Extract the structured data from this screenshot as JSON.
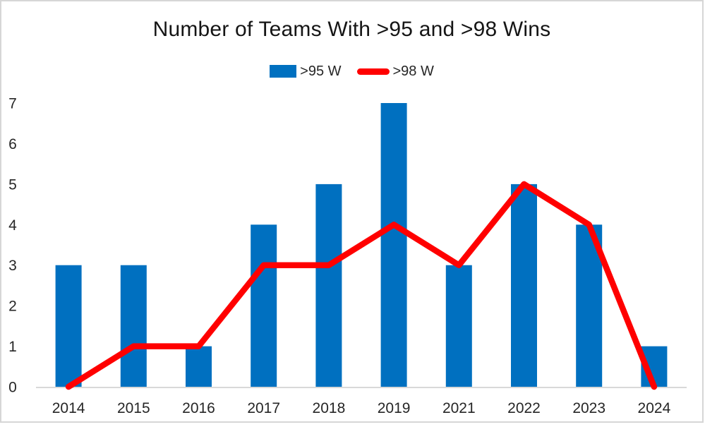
{
  "chart_data": {
    "type": "combo-bar-line",
    "title": "Number of Teams With >95 and >98 Wins",
    "categories": [
      "2014",
      "2015",
      "2016",
      "2017",
      "2018",
      "2019",
      "2021",
      "2022",
      "2023",
      "2024"
    ],
    "series": [
      {
        "name": ">95 W",
        "type": "bar",
        "color": "#0070C0",
        "values": [
          3,
          3,
          1,
          4,
          5,
          7,
          3,
          5,
          4,
          1
        ]
      },
      {
        "name": ">98 W",
        "type": "line",
        "color": "#FF0000",
        "values": [
          0,
          1,
          1,
          3,
          3,
          4,
          3,
          5,
          4,
          0
        ]
      }
    ],
    "ylim": [
      0,
      7
    ],
    "yticks": [
      0,
      1,
      2,
      3,
      4,
      5,
      6,
      7
    ],
    "xlabel": "",
    "ylabel": "",
    "grid": false,
    "legend_position": "top-center",
    "colors": {
      "text": "#262626",
      "axis_line": "#D9D9D9",
      "frame_border": "#D6D6D6",
      "background": "#FFFFFF"
    }
  }
}
